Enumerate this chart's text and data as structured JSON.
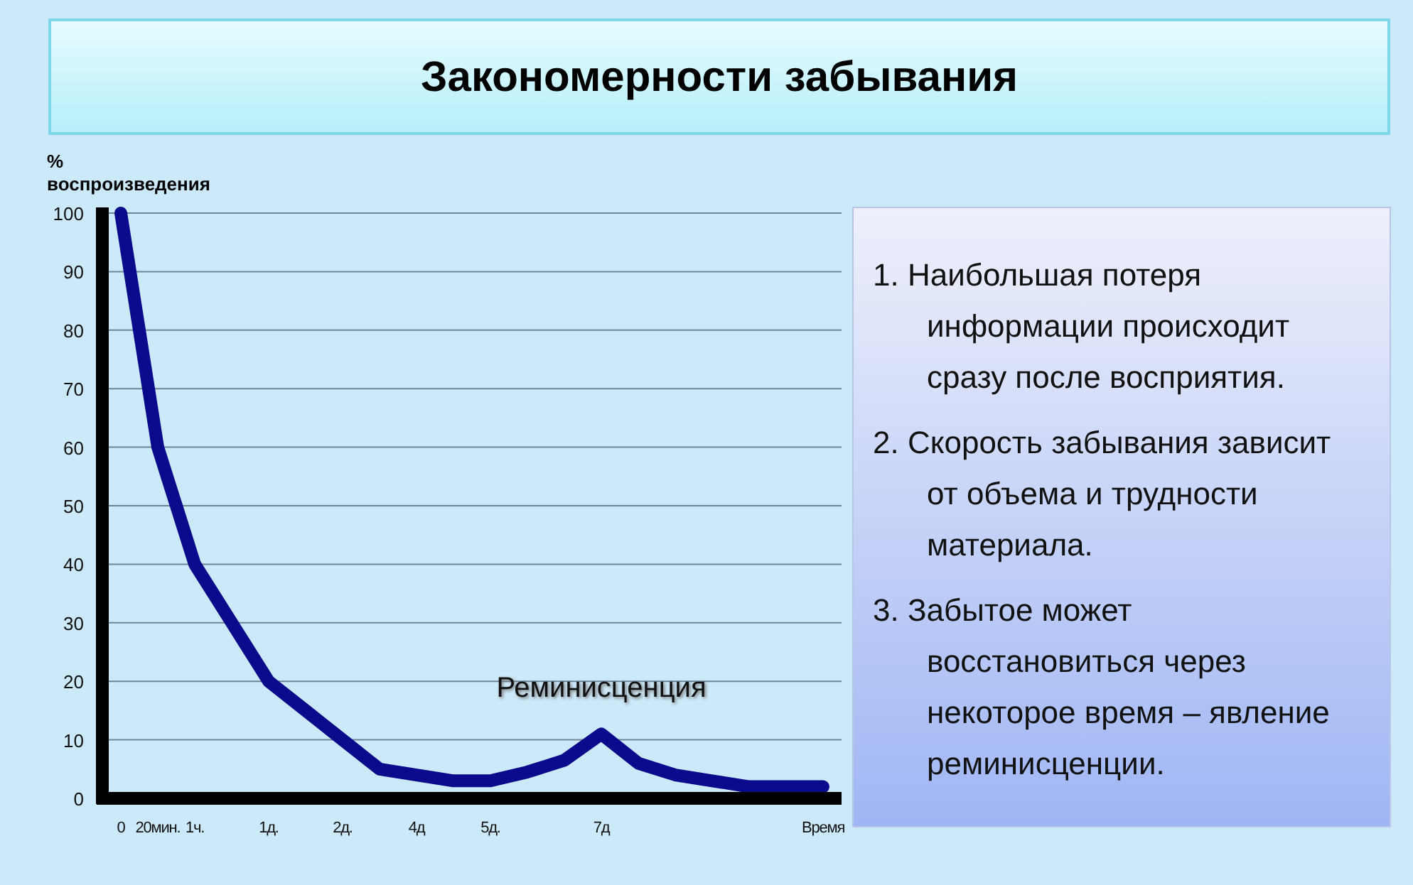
{
  "chart_data": {
    "type": "line",
    "title": "Закономерности забывания",
    "ylabel": "% воспроизведения",
    "categories": [
      "0",
      "20мин.",
      "1ч.",
      null,
      "1д.",
      null,
      "2д.",
      null,
      "4д",
      null,
      "5д.",
      null,
      null,
      "7д",
      null,
      null,
      null,
      null,
      null,
      "Время"
    ],
    "series": [
      {
        "color": "#0a0a8c",
        "values": [
          100,
          60,
          40,
          30,
          20,
          15,
          10,
          5,
          4,
          3,
          3,
          4.5,
          6.5,
          11,
          6,
          4,
          3,
          2,
          2,
          2
        ]
      }
    ],
    "ylim": [
      0,
      100
    ],
    "yticks": [
      0,
      10,
      20,
      30,
      40,
      50,
      60,
      70,
      80,
      90,
      100
    ],
    "grid": "y",
    "marker": "none",
    "line_style": "solid",
    "annotations": [
      {
        "text": "Реминисценция",
        "x": "7д",
        "y": 11
      },
      "1. Наибольшая потеря информации происходит сразу после восприятия.",
      "2. Скорость забывания зависит от объема и трудности материала.",
      "3. Забытое может восстановиться через некоторое время – явление реминисценции."
    ]
  }
}
